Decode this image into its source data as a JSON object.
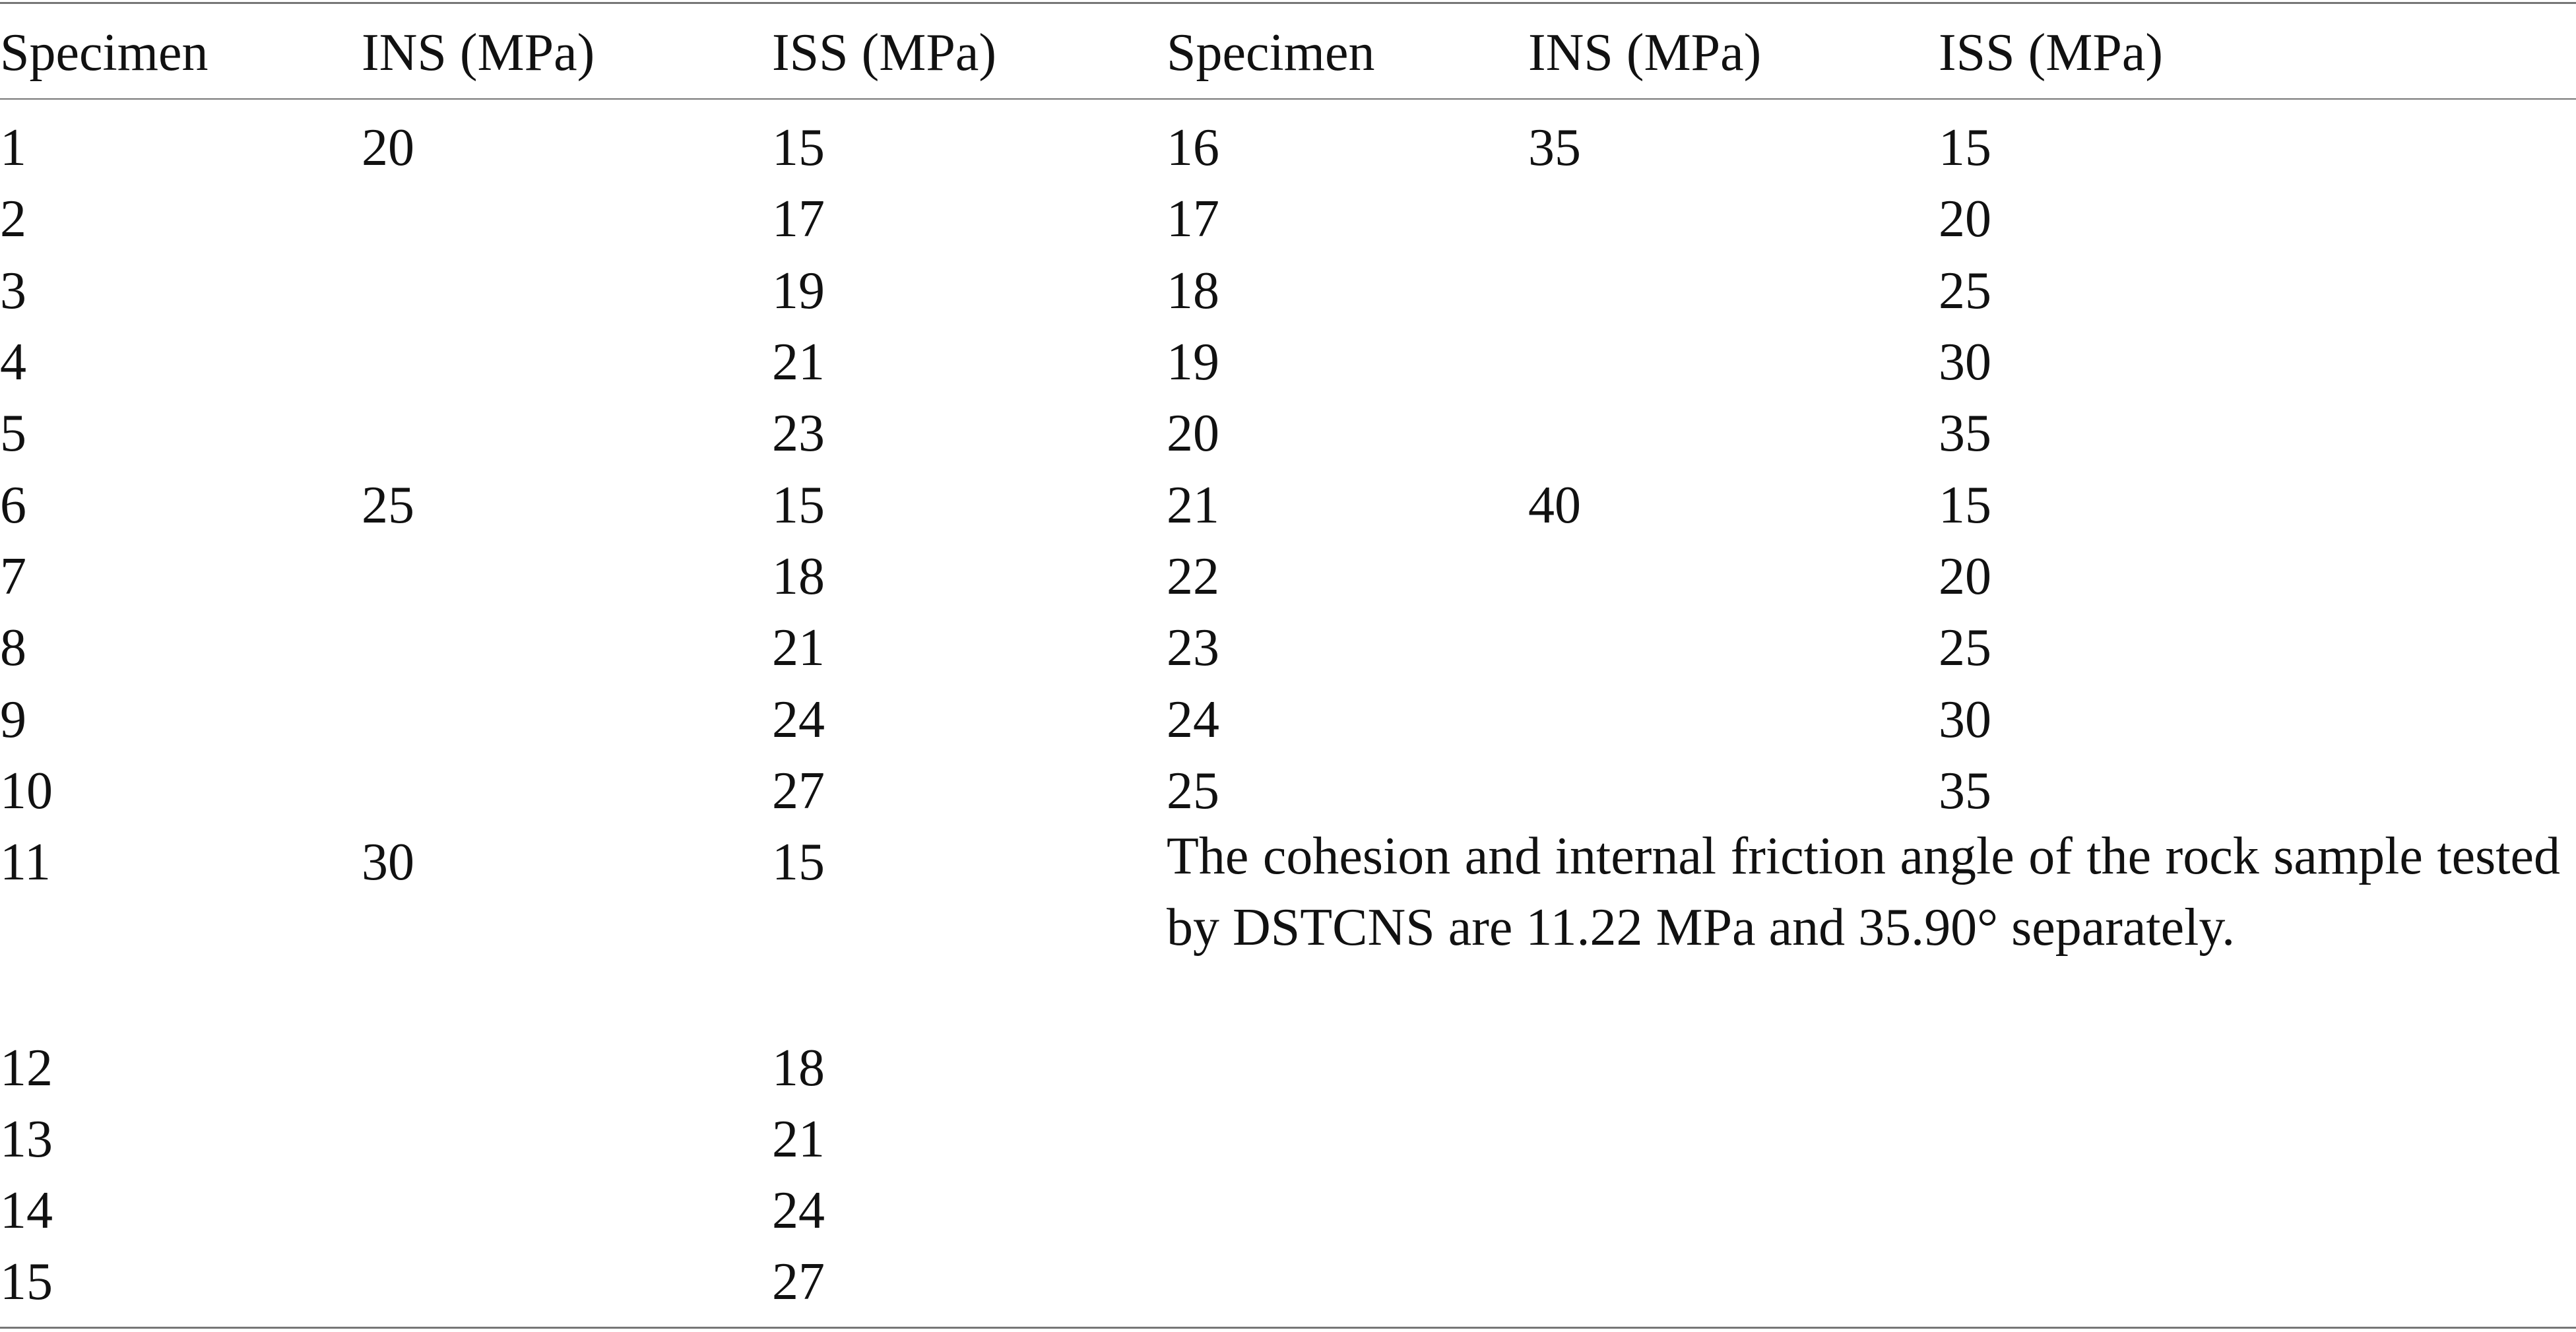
{
  "table": {
    "header": [
      "Specimen",
      "INS (MPa)",
      "ISS (MPa)",
      "Specimen",
      "INS (MPa)",
      "ISS (MPa)"
    ],
    "left": [
      {
        "specimen": 1,
        "ins": 20,
        "iss": 15
      },
      {
        "specimen": 2,
        "iss": 17
      },
      {
        "specimen": 3,
        "iss": 19
      },
      {
        "specimen": 4,
        "iss": 21
      },
      {
        "specimen": 5,
        "iss": 23
      },
      {
        "specimen": 6,
        "ins": 25,
        "iss": 15
      },
      {
        "specimen": 7,
        "iss": 18
      },
      {
        "specimen": 8,
        "iss": 21
      },
      {
        "specimen": 9,
        "iss": 24
      },
      {
        "specimen": 10,
        "iss": 27
      },
      {
        "specimen": 11,
        "ins": 30,
        "iss": 15
      },
      {
        "specimen": 12,
        "iss": 18
      },
      {
        "specimen": 13,
        "iss": 21
      },
      {
        "specimen": 14,
        "iss": 24
      },
      {
        "specimen": 15,
        "iss": 27
      }
    ],
    "right": [
      {
        "specimen": 16,
        "ins": 35,
        "iss": 15
      },
      {
        "specimen": 17,
        "iss": 20
      },
      {
        "specimen": 18,
        "iss": 25
      },
      {
        "specimen": 19,
        "iss": 30
      },
      {
        "specimen": 20,
        "iss": 35
      },
      {
        "specimen": 21,
        "ins": 40,
        "iss": 15
      },
      {
        "specimen": 22,
        "iss": 20
      },
      {
        "specimen": 23,
        "iss": 25
      },
      {
        "specimen": 24,
        "iss": 30
      },
      {
        "specimen": 25,
        "iss": 35
      }
    ],
    "note": "The cohesion and internal friction angle of the rock sample tested by DSTCNS are 11.22 MPa and 35.90° separately."
  }
}
